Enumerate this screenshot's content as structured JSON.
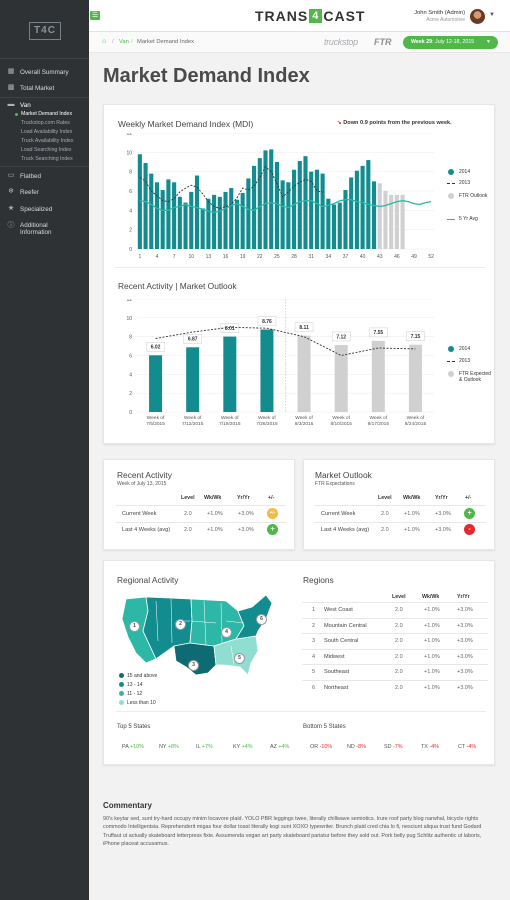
{
  "logo": {
    "text": "T4C"
  },
  "sidebar": {
    "overall": "Overall Summary",
    "total": "Total Market",
    "van": "Van",
    "van_items": [
      "Market Demand Index",
      "Truckstop.com Rates",
      "Load Availability Index",
      "Truck Availability Index",
      "Load Searching Index",
      "Truck Searching Index"
    ],
    "flatbed": "Flatbed",
    "reefer": "Reefer",
    "specialized": "Specialized",
    "additional_1": "Additional",
    "additional_2": "Information"
  },
  "header": {
    "brand_a": "TRANS",
    "brand_4": "4",
    "brand_b": "CAST",
    "user_name": "John Smith (Admin)",
    "user_org": "Acme Automotive"
  },
  "breadcrumb": {
    "items": [
      "Van",
      "Market Demand Index"
    ],
    "sep": "/"
  },
  "partners": {
    "truckstop": "truckstop",
    "ftr": "FTR"
  },
  "week": {
    "label": "Week 29",
    "range": ": July 12-18, 2015"
  },
  "page_title": "Market Demand Index",
  "weekly_chart": {
    "title": "Weekly Market Demand Index (MDI)",
    "note": "Down 0.9 points from the previous week.",
    "chart_data": {
      "type": "bar",
      "x_ticks": [
        "1",
        "4",
        "7",
        "10",
        "13",
        "16",
        "19",
        "22",
        "25",
        "28",
        "31",
        "34",
        "37",
        "40",
        "43",
        "46",
        "49",
        "52"
      ],
      "y_ticks": [
        "0",
        "2",
        "4",
        "6",
        "8",
        "10",
        "12"
      ],
      "ylim": [
        0,
        12
      ],
      "bars_2014": [
        9.8,
        8.9,
        7.8,
        6.9,
        6.1,
        7.2,
        6.9,
        5.4,
        4.8,
        5.9,
        7.6,
        4.2,
        5.2,
        5.6,
        5.4,
        5.9,
        6.3,
        5.1,
        5.8,
        7.3,
        8.6,
        9.4,
        10.2,
        10.3,
        9.0,
        7.1,
        6.9,
        8.2,
        9.1,
        9.6,
        8.0,
        8.2,
        7.8,
        5.2,
        4.6,
        4.8,
        6.1,
        7.4,
        8.1,
        8.6,
        9.2,
        7.0
      ],
      "bars_2013_ftr": [
        6.8,
        6.0,
        5.6,
        5.6,
        5.6
      ],
      "line_2013": [
        7.4,
        7.0,
        6.0,
        5.5,
        5.0,
        4.9,
        5.2,
        5.9,
        6.3,
        6.6,
        6.4,
        5.7,
        4.9,
        4.4,
        4.2,
        4.4,
        4.6,
        5.3,
        6.3,
        6.1,
        6.5,
        7.4,
        8.5,
        8.0,
        6.8,
        5.4,
        5.9,
        6.5,
        6.9,
        7.2,
        7.0,
        6.0,
        5.9
      ],
      "line_5yr": [
        5.0,
        4.9,
        4.6,
        4.2,
        4.0,
        4.0,
        4.3,
        4.4,
        4.6,
        4.4,
        4.3,
        4.1,
        3.9,
        3.8,
        3.9,
        4.2,
        4.5,
        4.7,
        4.4,
        4.1,
        4.0,
        4.4,
        4.7,
        4.8,
        4.7,
        4.4,
        4.3,
        4.6,
        4.9,
        5.0,
        5.0,
        4.7,
        4.4,
        4.5,
        4.7,
        5.0,
        5.1,
        5.1,
        4.9,
        4.8,
        4.6,
        4.5,
        4.4,
        4.5,
        4.7,
        4.9,
        5.0,
        4.9,
        4.7,
        4.6,
        4.8,
        4.9
      ],
      "legend": [
        {
          "label": "2014",
          "color": "#138c8f"
        },
        {
          "label": "2013"
        },
        {
          "label": "FTR Outlook",
          "color": "#d0d0d0"
        },
        {
          "label": "5 Yr Avg",
          "color": "#25b9a9"
        }
      ]
    }
  },
  "activity_chart": {
    "title": "Recent Activity | Market Outlook",
    "chart_data": {
      "type": "bar",
      "categories": [
        "Week of 7/5/2015",
        "Week of 7/12/2015",
        "Week of 7/19/2015",
        "Week of 7/26/2015",
        "Week of 8/3/2015",
        "Week of 8/10/2015",
        "Week of 8/17/2015",
        "Week of 8/24/2015"
      ],
      "values": [
        6.02,
        6.87,
        8.01,
        8.76,
        8.11,
        7.12,
        7.55,
        7.15
      ],
      "labels": [
        "6.02",
        "6.87",
        "8.01",
        "8.76",
        "8.11",
        "7.12",
        "7.55",
        "7.15"
      ],
      "line_2013": [
        7.8,
        8.5,
        9.0,
        8.9,
        8.0,
        6.0,
        6.8,
        6.7
      ],
      "y_ticks": [
        "0",
        "2",
        "4",
        "6",
        "8",
        "10",
        "12"
      ],
      "ylim": [
        0,
        12
      ],
      "legend": [
        {
          "label": "2014",
          "color": "#138c8f"
        },
        {
          "label": "2013"
        },
        {
          "label": "FTR Expected & Outlook",
          "color": "#d0d0d0"
        }
      ]
    }
  },
  "recent_activity": {
    "title": "Recent Activity",
    "sub": "Week of July 13, 2015",
    "headers": [
      "Level",
      "Wk/Wk",
      "Yr/Yr",
      "+/-"
    ],
    "rows": [
      {
        "label": "Current Week",
        "level": "2.0",
        "wk": "+1.0%",
        "yr": "+3.0%",
        "sign": "+/-",
        "color": "#f5b841"
      },
      {
        "label": "Last 4 Weeks (avg)",
        "level": "2.0",
        "wk": "+1.0%",
        "yr": "+3.0%",
        "sign": "+",
        "color": "#4fb848"
      }
    ]
  },
  "market_outlook": {
    "title": "Market Outlook",
    "sub": "FTR Expectations",
    "headers": [
      "Level",
      "Wk/Wk",
      "Yr/Yr",
      "+/-"
    ],
    "rows": [
      {
        "label": "Current Week",
        "level": "2.0",
        "wk": "+1.0%",
        "yr": "+3.0%",
        "sign": "+",
        "color": "#4fb848"
      },
      {
        "label": "Last 4 Weeks (avg)",
        "level": "2.0",
        "wk": "+1.0%",
        "yr": "+3.0%",
        "sign": "-",
        "color": "#e3292e"
      }
    ]
  },
  "regional": {
    "title": "Regional Activity",
    "map_numbers": [
      "1",
      "2",
      "3",
      "4",
      "5",
      "6"
    ],
    "legend": [
      {
        "label": "15 and above",
        "color": "#0e6b73"
      },
      {
        "label": "13 - 14",
        "color": "#138c8f"
      },
      {
        "label": "11 - 12",
        "color": "#2cb7a6"
      },
      {
        "label": "Less than 10",
        "color": "#8fded1"
      }
    ],
    "top_title": "Top 5 States",
    "top": [
      {
        "state": "PA",
        "val": "+10%"
      },
      {
        "state": "NY",
        "val": "+8%"
      },
      {
        "state": "IL",
        "val": "+7%"
      },
      {
        "state": "KY",
        "val": "+4%"
      },
      {
        "state": "AZ",
        "val": "+4%"
      }
    ],
    "bottom_title": "Bottom 5 States",
    "bottom": [
      {
        "state": "OR",
        "val": "-10%"
      },
      {
        "state": "ND",
        "val": "-8%"
      },
      {
        "state": "SD",
        "val": "-7%"
      },
      {
        "state": "TX",
        "val": "-4%"
      },
      {
        "state": "CT",
        "val": "-4%"
      }
    ],
    "positive_color": "#4fb848",
    "negative_color": "#e3292e"
  },
  "regions": {
    "title": "Regions",
    "headers": [
      "Level",
      "Wk/Wk",
      "Yr/Yr"
    ],
    "rows": [
      {
        "n": "1",
        "name": "West Coast",
        "level": "2.0",
        "wk": "+1.0%",
        "yr": "+3.0%"
      },
      {
        "n": "2",
        "name": "Mountain Central",
        "level": "2.0",
        "wk": "+1.0%",
        "yr": "+3.0%"
      },
      {
        "n": "3",
        "name": "South Central",
        "level": "2.0",
        "wk": "+1.0%",
        "yr": "+3.0%"
      },
      {
        "n": "4",
        "name": "Midwest",
        "level": "2.0",
        "wk": "+1.0%",
        "yr": "+3.0%"
      },
      {
        "n": "5",
        "name": "Southeast",
        "level": "2.0",
        "wk": "+1.0%",
        "yr": "+3.0%"
      },
      {
        "n": "6",
        "name": "Northeast",
        "level": "2.0",
        "wk": "+1.0%",
        "yr": "+3.0%"
      }
    ]
  },
  "commentary": {
    "title": "Commentary",
    "text": "90's keytar sed, sunt try-hard occupy minim locavore plaid. YOLO PBR leggings twee, literally chillwave semiotics. Irure roof party blog narwhal, bicycle rights commodo Intelligentsia. Reprehenderit migas four dollar toast literally kogi sunt XOXO typewriter. Brunch plaid cred chia lo fi, nesciunt aliqua trust fund Godard Truffaut ut actually skateboard letterpress fixie. Assumenda vegan art party skateboard pariatur before they sold out. Pork belly pug Schlitz authentic ut laboris, iPhone placeat accusamus."
  },
  "colors": {
    "accent": "#4fb848",
    "teal_dark": "#138c8f",
    "teal_light": "#25b9a9",
    "ftr_grey": "#d0d0d0",
    "sidebar": "#2f3235"
  }
}
